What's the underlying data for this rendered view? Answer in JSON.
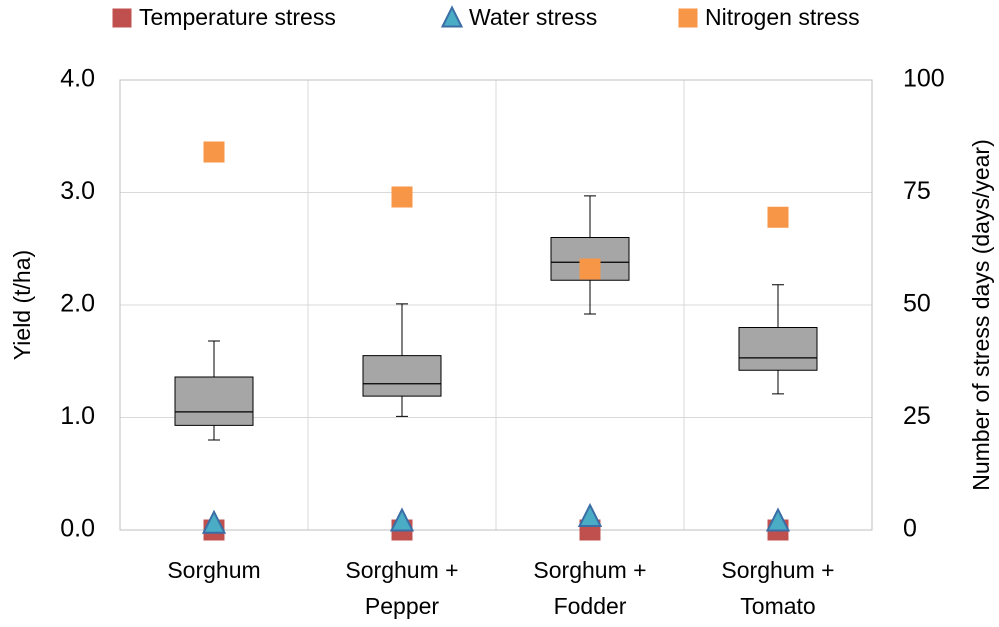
{
  "chart_data": {
    "type": "box",
    "categories": [
      [
        "Sorghum"
      ],
      [
        "Sorghum +",
        "Pepper"
      ],
      [
        "Sorghum +",
        "Fodder"
      ],
      [
        "Sorghum +",
        "Tomato"
      ]
    ],
    "boxes": [
      {
        "whislo": 0.8,
        "q1": 0.93,
        "med": 1.05,
        "q3": 1.36,
        "whishi": 1.68
      },
      {
        "whislo": 1.01,
        "q1": 1.19,
        "med": 1.3,
        "q3": 1.55,
        "whishi": 2.01
      },
      {
        "whislo": 1.92,
        "q1": 2.22,
        "med": 2.38,
        "q3": 2.6,
        "whishi": 2.97
      },
      {
        "whislo": 1.21,
        "q1": 1.42,
        "med": 1.53,
        "q3": 1.8,
        "whishi": 2.18
      }
    ],
    "box_color": "#a6a6a6",
    "y_label": "Yield (t/ha)",
    "y2_label": "Number of stress days (days/year)",
    "ylim": [
      0,
      4
    ],
    "yticks": [
      {
        "value": 0,
        "label": "0.0"
      },
      {
        "value": 1,
        "label": "1.0"
      },
      {
        "value": 2,
        "label": "2.0"
      },
      {
        "value": 3,
        "label": "3.0"
      },
      {
        "value": 4,
        "label": "4.0"
      }
    ],
    "y2lim": [
      0,
      100
    ],
    "y2ticks": [
      0,
      25,
      50,
      75,
      100
    ],
    "grid": true,
    "legend": "top",
    "series": [
      {
        "name": "Temperature stress",
        "color": "#c0504d",
        "marker": "square",
        "axis": "y2",
        "values": [
          0,
          0,
          0,
          0
        ]
      },
      {
        "name": "Water stress",
        "color": "#4bacc6",
        "marker": "triangle",
        "axis": "y2",
        "values": [
          1.5,
          2,
          3,
          2
        ]
      },
      {
        "name": "Nitrogen stress",
        "color": "#f79646",
        "marker": "square",
        "axis": "y2",
        "values": [
          84,
          74,
          58,
          69.5
        ]
      }
    ]
  }
}
